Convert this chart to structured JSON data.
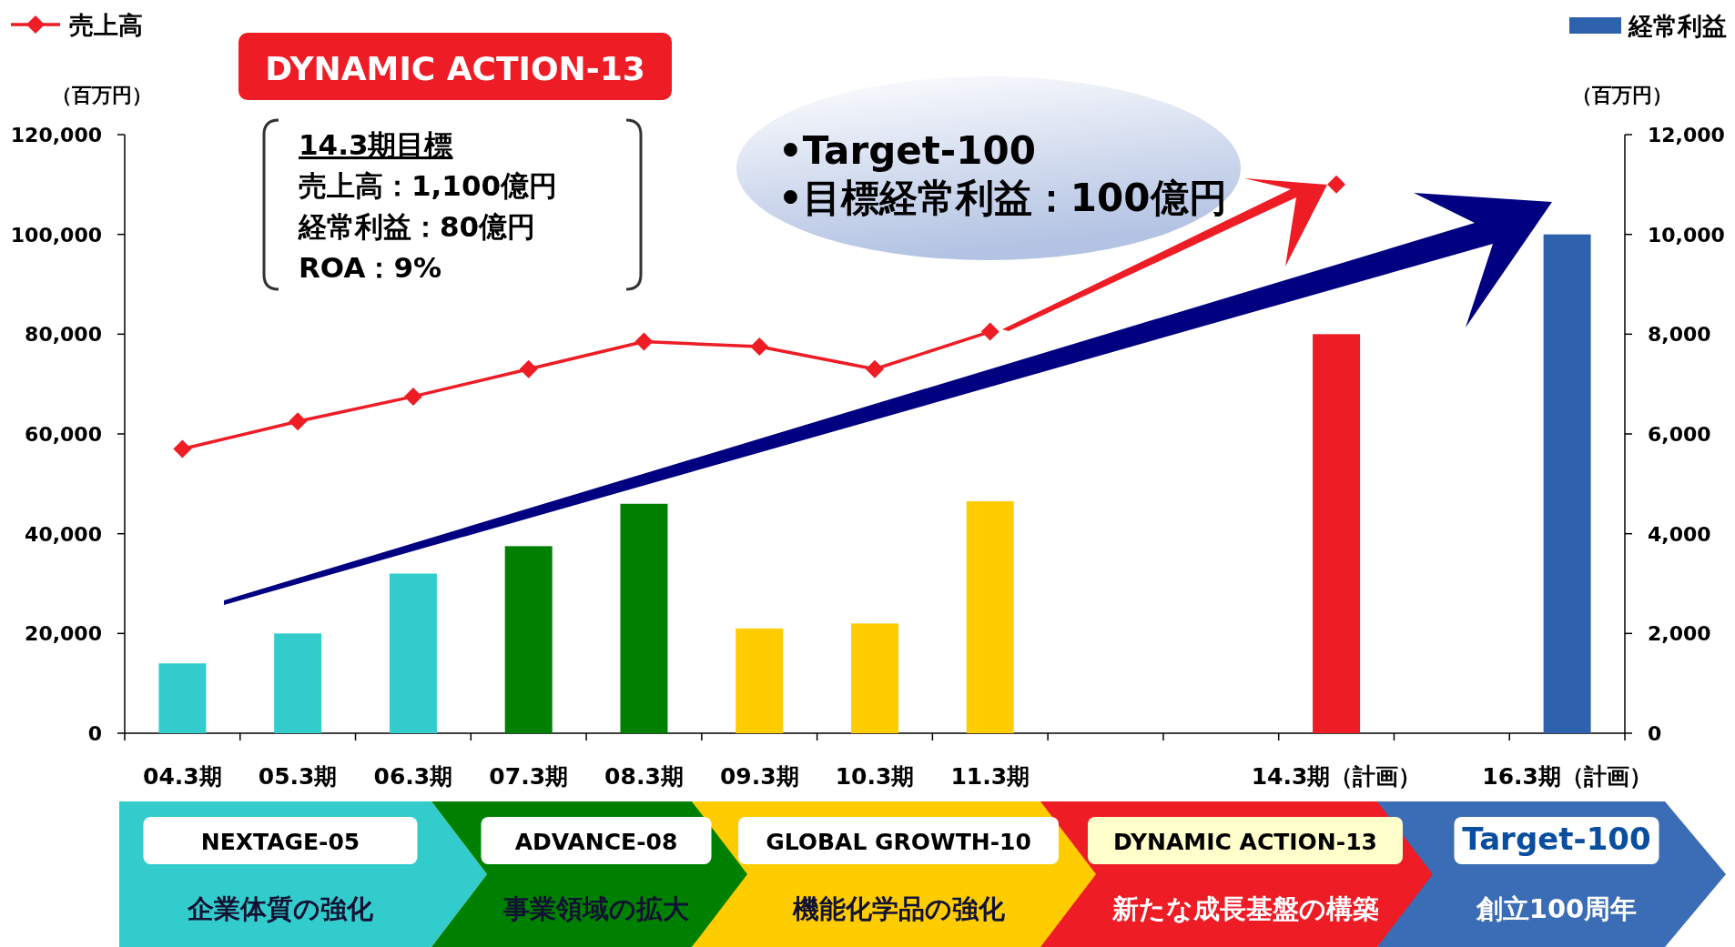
{
  "chart_data": {
    "type": "bar",
    "ylabel": "（百万円）",
    "y2label": "（百万円）",
    "categories": [
      "04.3期",
      "05.3期",
      "06.3期",
      "07.3期",
      "08.3期",
      "09.3期",
      "10.3期",
      "11.3期",
      null,
      null,
      "14.3期（計画）",
      null,
      "16.3期（計画）"
    ],
    "series": [
      {
        "name": "売上高",
        "type": "line",
        "color": "#ee1c25",
        "values": [
          57000,
          62500,
          67500,
          73000,
          78500,
          77500,
          73000,
          80500,
          null,
          null,
          110000,
          null,
          null
        ]
      },
      {
        "name": "経常利益",
        "axis": "y2",
        "color": "#2f62ad",
        "colors": [
          "#33cccc",
          "#33cccc",
          "#33cccc",
          "#008000",
          "#008000",
          "#ffcc00",
          "#ffcc00",
          "#ffcc00",
          null,
          null,
          "#ee1c25",
          null,
          "#2f62ad"
        ],
        "values": [
          1400,
          2000,
          3200,
          3750,
          4600,
          2100,
          2200,
          4650,
          null,
          null,
          8000,
          null,
          10000
        ]
      }
    ],
    "ylim": [
      0,
      120000
    ],
    "yticks": [
      0,
      {
        "value": 20000,
        "label": "20,000"
      },
      {
        "value": 40000,
        "label": "40,000"
      },
      {
        "value": 60000,
        "label": "60,000"
      },
      {
        "value": 80000,
        "label": "80,000"
      },
      {
        "value": 100000,
        "label": "100,000"
      },
      {
        "value": 120000,
        "label": "120,000"
      }
    ],
    "y2lim": [
      0,
      12000
    ],
    "y2ticks": [
      0,
      {
        "value": 2000,
        "label": "2,000"
      },
      {
        "value": 4000,
        "label": "4,000"
      },
      {
        "value": 6000,
        "label": "6,000"
      },
      {
        "value": 8000,
        "label": "8,000"
      },
      {
        "value": 10000,
        "label": "10,000"
      },
      {
        "value": 12000,
        "label": "12,000"
      }
    ],
    "marker": "diamond",
    "line_style": "solid",
    "legend": "top",
    "grid": false,
    "annotations": [
      "DYNAMIC ACTION-13",
      "14.3期目標",
      "売上高：1,100億円",
      "経常利益：80億円",
      "ROA：9%",
      "•Target-100",
      "•目標経常利益：100億円",
      "NEXTAGE-05",
      "企業体質の強化",
      "ADVANCE-08",
      "事業領域の拡大",
      "GLOBAL GROWTH-10",
      "機能化学品の強化",
      "DYNAMIC ACTION-13",
      "新たな成長基盤の構築",
      "Target-100",
      "創立100周年"
    ]
  }
}
